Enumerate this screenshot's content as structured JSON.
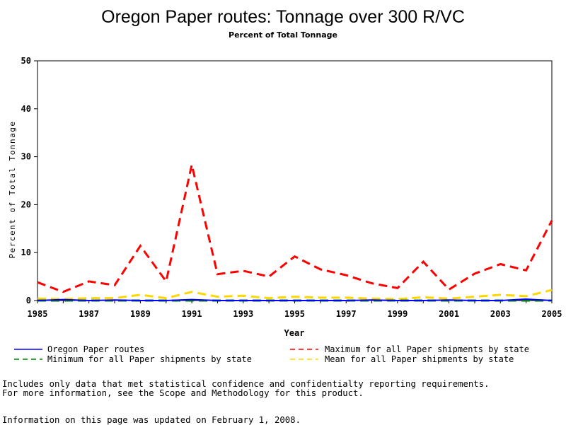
{
  "chart_data": {
    "type": "line",
    "title": "Oregon Paper routes: Tonnage over 300 R/VC",
    "subtitle": "Percent of Total Tonnage",
    "xlabel": "Year",
    "ylabel": "Percent of Total Tonnage",
    "xlim": [
      1985,
      2005
    ],
    "ylim": [
      0,
      50
    ],
    "x_ticks": [
      "1985",
      "1987",
      "1989",
      "1991",
      "1993",
      "1995",
      "1997",
      "1999",
      "2001",
      "2003",
      "2005"
    ],
    "y_ticks": [
      "0",
      "10",
      "20",
      "30",
      "40",
      "50"
    ],
    "grid": false,
    "legend_position": "bottom",
    "x": [
      1985,
      1986,
      1987,
      1988,
      1989,
      1990,
      1991,
      1992,
      1993,
      1994,
      1995,
      1996,
      1997,
      1998,
      1999,
      2000,
      2001,
      2002,
      2003,
      2004,
      2005
    ],
    "series": [
      {
        "name": "Oregon Paper routes",
        "color": "#0000ff",
        "dash": "solid",
        "values": [
          0.0,
          0.2,
          0.0,
          0.1,
          0.0,
          0.0,
          0.2,
          0.0,
          0.0,
          0.0,
          0.0,
          0.0,
          0.0,
          0.1,
          0.0,
          0.0,
          0.1,
          0.0,
          0.0,
          0.3,
          0.0
        ]
      },
      {
        "name": "Minimum for all Paper shipments by state",
        "color": "#008000",
        "dash": "dashed",
        "values": [
          0.0,
          0.0,
          0.0,
          0.0,
          0.0,
          0.0,
          0.0,
          0.0,
          0.0,
          0.0,
          0.0,
          0.0,
          0.0,
          0.0,
          0.0,
          0.0,
          0.0,
          0.0,
          0.0,
          0.0,
          0.0
        ]
      },
      {
        "name": "Maximum for all Paper shipments by state",
        "color": "#ff0000",
        "dash": "dashed",
        "values": [
          3.8,
          1.8,
          4.0,
          3.2,
          11.4,
          4.0,
          28.3,
          5.5,
          6.2,
          5.0,
          9.2,
          6.5,
          5.3,
          3.6,
          2.6,
          8.1,
          2.3,
          5.6,
          7.6,
          6.3,
          16.7
        ]
      },
      {
        "name": "Mean for all Paper shipments by state",
        "color": "#ffd700",
        "dash": "dashed",
        "values": [
          0.4,
          0.3,
          0.5,
          0.5,
          1.2,
          0.5,
          1.8,
          0.8,
          1.0,
          0.5,
          0.8,
          0.6,
          0.6,
          0.4,
          0.3,
          0.7,
          0.4,
          0.8,
          1.2,
          0.9,
          2.2
        ]
      }
    ],
    "notes": [
      "Includes only data that met statistical confidence and confidentialty reporting requirements.",
      "For more information, see the Scope and Methodology for this product.",
      "Information on this page was updated on February 1, 2008."
    ]
  }
}
